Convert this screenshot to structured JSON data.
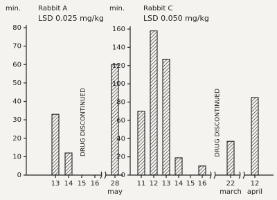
{
  "chart_data": [
    {
      "type": "bar",
      "title": "Rabbit A",
      "subtitle": "LSD 0.025 mg/kg",
      "ylabel": "min.",
      "annotation": "DRUG DISCONTINUED",
      "categories": [
        "13",
        "14",
        "15",
        "16",
        "28"
      ],
      "sublabels": [
        null,
        null,
        null,
        null,
        "may"
      ],
      "values": [
        33,
        12,
        0,
        0,
        60
      ],
      "color": "#222222",
      "ylim": [
        0,
        80
      ],
      "yticks": [
        0,
        10,
        20,
        30,
        40,
        50,
        60,
        70,
        80
      ]
    },
    {
      "type": "bar",
      "title": "Rabbit C",
      "subtitle": "LSD 0.050 mg/kg",
      "ylabel": "min.",
      "annotation": "DRUG DISCONTINUED",
      "categories": [
        "11",
        "12",
        "13",
        "14",
        "15",
        "16",
        "22",
        "12"
      ],
      "sublabels": [
        null,
        null,
        null,
        null,
        null,
        null,
        "march",
        "april"
      ],
      "values": [
        70,
        158,
        127,
        19,
        0,
        10,
        37,
        85
      ],
      "color": "#222222",
      "ylim": [
        0,
        160
      ],
      "yticks": [
        0,
        20,
        40,
        60,
        80,
        100,
        120,
        140,
        160
      ]
    }
  ]
}
